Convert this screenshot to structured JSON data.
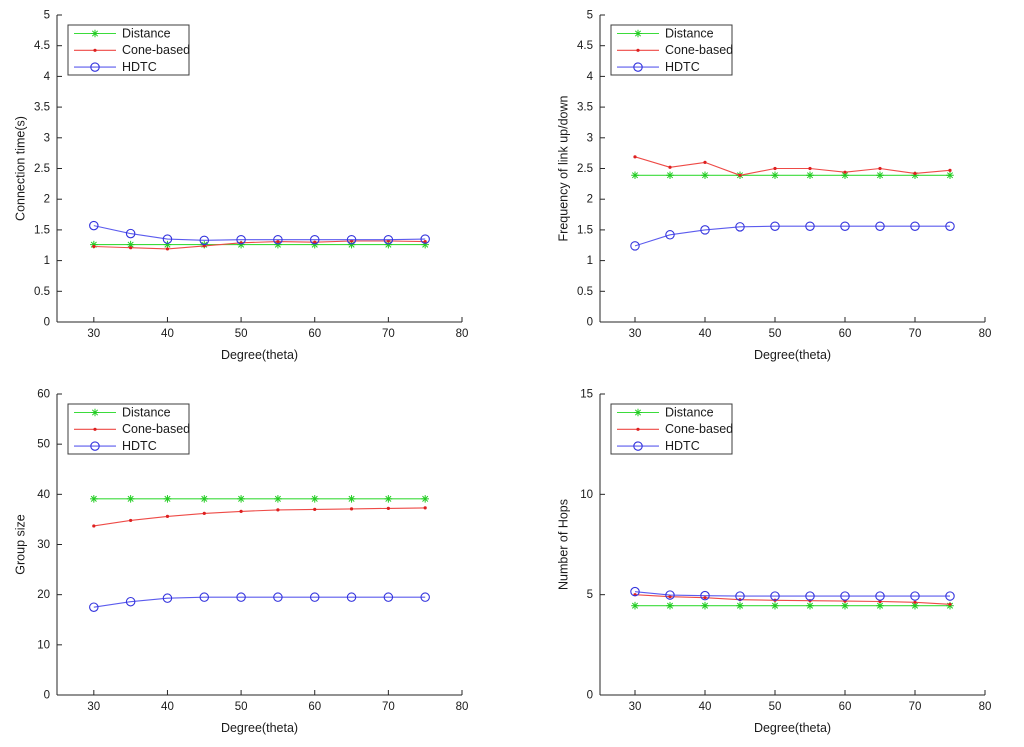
{
  "figure": {
    "background": "#ffffff",
    "axis_color": "#262626",
    "series_styles": [
      {
        "name": "Distance",
        "marker": "asterisk",
        "line_color": "#3bdc3b",
        "marker_color": "#22cc22"
      },
      {
        "name": "Cone-based",
        "marker": "dot",
        "line_color": "#ee4a46",
        "marker_color": "#dd2020"
      },
      {
        "name": "HDTC",
        "marker": "circle",
        "line_color": "#5b5bee",
        "marker_color": "#3434dd"
      }
    ]
  },
  "chart_data": [
    {
      "id": "connection-time",
      "type": "line",
      "title": "",
      "xlabel": "Degree(theta)",
      "ylabel": "Connection time(s)",
      "xlim": [
        25,
        80
      ],
      "ylim": [
        0,
        5
      ],
      "xticks": [
        30,
        40,
        50,
        60,
        70,
        80
      ],
      "yticks": [
        0,
        0.5,
        1,
        1.5,
        2,
        2.5,
        3,
        3.5,
        4,
        4.5,
        5
      ],
      "grid": false,
      "legend_position": "upper-left",
      "legend": [
        "Distance",
        "Cone-based",
        "HDTC"
      ],
      "x": [
        30,
        35,
        40,
        45,
        50,
        55,
        60,
        65,
        70,
        75
      ],
      "series": [
        {
          "name": "Distance",
          "values": [
            1.26,
            1.26,
            1.26,
            1.26,
            1.26,
            1.26,
            1.26,
            1.26,
            1.26,
            1.26
          ]
        },
        {
          "name": "Cone-based",
          "values": [
            1.23,
            1.21,
            1.19,
            1.24,
            1.29,
            1.31,
            1.3,
            1.32,
            1.32,
            1.31
          ]
        },
        {
          "name": "HDTC",
          "values": [
            1.57,
            1.44,
            1.35,
            1.33,
            1.34,
            1.34,
            1.34,
            1.34,
            1.34,
            1.35
          ]
        }
      ]
    },
    {
      "id": "frequency-link-up-down",
      "type": "line",
      "title": "",
      "xlabel": "Degree(theta)",
      "ylabel": "Frequency of link up/down",
      "xlim": [
        25,
        80
      ],
      "ylim": [
        0,
        5
      ],
      "xticks": [
        30,
        40,
        50,
        60,
        70,
        80
      ],
      "yticks": [
        0,
        0.5,
        1,
        1.5,
        2,
        2.5,
        3,
        3.5,
        4,
        4.5,
        5
      ],
      "grid": false,
      "legend_position": "upper-left",
      "legend": [
        "Distance",
        "Cone-based",
        "HDTC"
      ],
      "x": [
        30,
        35,
        40,
        45,
        50,
        55,
        60,
        65,
        70,
        75
      ],
      "series": [
        {
          "name": "Distance",
          "values": [
            2.39,
            2.39,
            2.39,
            2.39,
            2.39,
            2.39,
            2.39,
            2.39,
            2.39,
            2.39
          ]
        },
        {
          "name": "Cone-based",
          "values": [
            2.69,
            2.52,
            2.6,
            2.39,
            2.5,
            2.5,
            2.44,
            2.5,
            2.42,
            2.47
          ]
        },
        {
          "name": "HDTC",
          "values": [
            1.24,
            1.42,
            1.5,
            1.55,
            1.56,
            1.56,
            1.56,
            1.56,
            1.56,
            1.56
          ]
        }
      ]
    },
    {
      "id": "group-size",
      "type": "line",
      "title": "",
      "xlabel": "Degree(theta)",
      "ylabel": "Group size",
      "xlim": [
        25,
        80
      ],
      "ylim": [
        0,
        60
      ],
      "xticks": [
        30,
        40,
        50,
        60,
        70,
        80
      ],
      "yticks": [
        0,
        10,
        20,
        30,
        40,
        50,
        60
      ],
      "grid": false,
      "legend_position": "upper-left",
      "legend": [
        "Distance",
        "Cone-based",
        "HDTC"
      ],
      "x": [
        30,
        35,
        40,
        45,
        50,
        55,
        60,
        65,
        70,
        75
      ],
      "series": [
        {
          "name": "Distance",
          "values": [
            39.1,
            39.1,
            39.1,
            39.1,
            39.1,
            39.1,
            39.1,
            39.1,
            39.1,
            39.1
          ]
        },
        {
          "name": "Cone-based",
          "values": [
            33.7,
            34.8,
            35.6,
            36.2,
            36.6,
            36.9,
            37.0,
            37.1,
            37.2,
            37.3
          ]
        },
        {
          "name": "HDTC",
          "values": [
            17.5,
            18.6,
            19.3,
            19.5,
            19.5,
            19.5,
            19.5,
            19.5,
            19.5,
            19.5
          ]
        }
      ]
    },
    {
      "id": "number-of-hops",
      "type": "line",
      "title": "",
      "xlabel": "Degree(theta)",
      "ylabel": "Number of Hops",
      "xlim": [
        25,
        80
      ],
      "ylim": [
        0,
        15
      ],
      "xticks": [
        30,
        40,
        50,
        60,
        70,
        80
      ],
      "yticks": [
        0,
        5,
        10,
        15
      ],
      "grid": false,
      "legend_position": "upper-left",
      "legend": [
        "Distance",
        "Cone-based",
        "HDTC"
      ],
      "x": [
        30,
        35,
        40,
        45,
        50,
        55,
        60,
        65,
        70,
        75
      ],
      "series": [
        {
          "name": "Distance",
          "values": [
            4.45,
            4.45,
            4.45,
            4.45,
            4.45,
            4.45,
            4.45,
            4.45,
            4.45,
            4.45
          ]
        },
        {
          "name": "Cone-based",
          "values": [
            5.0,
            4.9,
            4.85,
            4.75,
            4.72,
            4.7,
            4.68,
            4.66,
            4.62,
            4.52
          ]
        },
        {
          "name": "HDTC",
          "values": [
            5.15,
            4.98,
            4.95,
            4.93,
            4.93,
            4.93,
            4.93,
            4.93,
            4.93,
            4.93
          ]
        }
      ]
    }
  ]
}
